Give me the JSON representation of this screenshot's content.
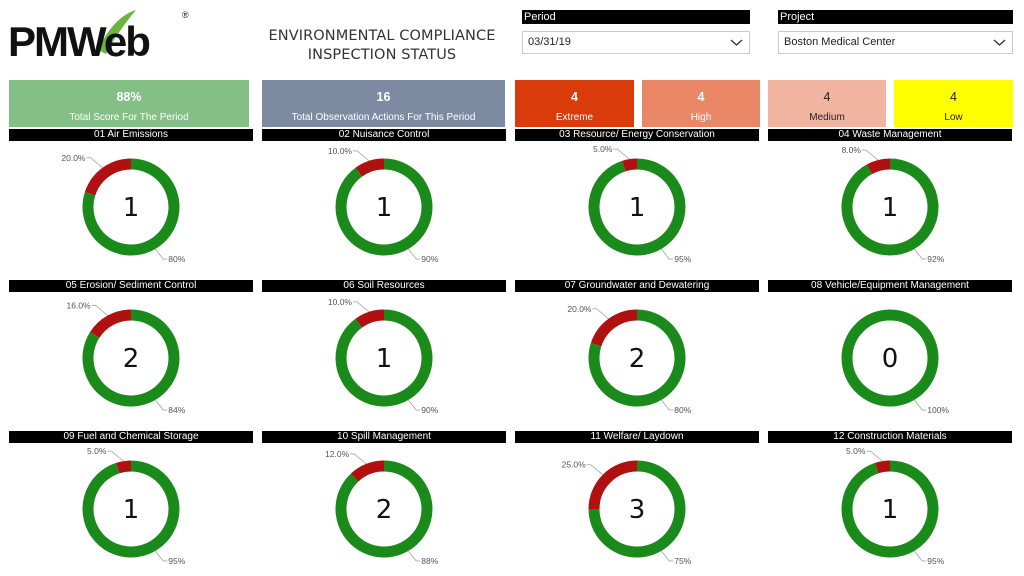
{
  "logo": {
    "text": "PMWeb",
    "registered": "®"
  },
  "header": {
    "title_line1": "ENVIRONMENTAL COMPLIANCE",
    "title_line2": "INSPECTION STATUS"
  },
  "filters": {
    "period": {
      "label": "Period",
      "value": "03/31/19"
    },
    "project": {
      "label": "Project",
      "value": "Boston Medical Center"
    }
  },
  "cards": {
    "score": {
      "value": "88%",
      "label": "Total Score For The Period"
    },
    "observations": {
      "value": "16",
      "label": "Total Observation Actions For This Period"
    },
    "extreme": {
      "value": "4",
      "label": "Extreme"
    },
    "high": {
      "value": "4",
      "label": "High"
    },
    "medium": {
      "value": "4",
      "label": "Medium"
    },
    "low": {
      "value": "4",
      "label": "Low"
    }
  },
  "colors": {
    "pass": "#1a8a1a",
    "fail": "#b01010",
    "score_card": "#84bf85",
    "obs_card": "#7c8ba2",
    "extreme_card": "#d93b0b",
    "high_card": "#e98767",
    "medium_card": "#f1b4a1",
    "low_card": "#ffff00"
  },
  "chart_data": [
    {
      "type": "pie",
      "title": "01 Air Emissions",
      "center": "1",
      "values": [
        20,
        80
      ],
      "labels": [
        "20.0%",
        "80%"
      ]
    },
    {
      "type": "pie",
      "title": "02 Nuisance Control",
      "center": "1",
      "values": [
        10,
        90
      ],
      "labels": [
        "10.0%",
        "90%"
      ]
    },
    {
      "type": "pie",
      "title": "03 Resource/ Energy Conservation",
      "center": "1",
      "values": [
        5,
        95
      ],
      "labels": [
        "5.0%",
        "95%"
      ]
    },
    {
      "type": "pie",
      "title": "04 Waste Management",
      "center": "1",
      "values": [
        8,
        92
      ],
      "labels": [
        "8.0%",
        "92%"
      ]
    },
    {
      "type": "pie",
      "title": "05 Erosion/ Sediment Control",
      "center": "2",
      "values": [
        16,
        84
      ],
      "labels": [
        "16.0%",
        "84%"
      ]
    },
    {
      "type": "pie",
      "title": "06 Soil Resources",
      "center": "1",
      "values": [
        10,
        90
      ],
      "labels": [
        "10.0%",
        "90%"
      ]
    },
    {
      "type": "pie",
      "title": "07 Groundwater and Dewatering",
      "center": "2",
      "values": [
        20,
        80
      ],
      "labels": [
        "20.0%",
        "80%"
      ]
    },
    {
      "type": "pie",
      "title": "08 Vehicle/Equipment Management",
      "center": "0",
      "values": [
        0,
        100
      ],
      "labels": [
        "",
        "100%"
      ]
    },
    {
      "type": "pie",
      "title": "09 Fuel and Chemical Storage",
      "center": "1",
      "values": [
        5,
        95
      ],
      "labels": [
        "5.0%",
        "95%"
      ]
    },
    {
      "type": "pie",
      "title": "10 Spill Management",
      "center": "2",
      "values": [
        12,
        88
      ],
      "labels": [
        "12.0%",
        "88%"
      ]
    },
    {
      "type": "pie",
      "title": "11 Welfare/ Laydown",
      "center": "3",
      "values": [
        25,
        75
      ],
      "labels": [
        "25.0%",
        "75%"
      ]
    },
    {
      "type": "pie",
      "title": "12 Construction Materials",
      "center": "1",
      "values": [
        5,
        95
      ],
      "labels": [
        "5.0%",
        "95%"
      ]
    }
  ]
}
